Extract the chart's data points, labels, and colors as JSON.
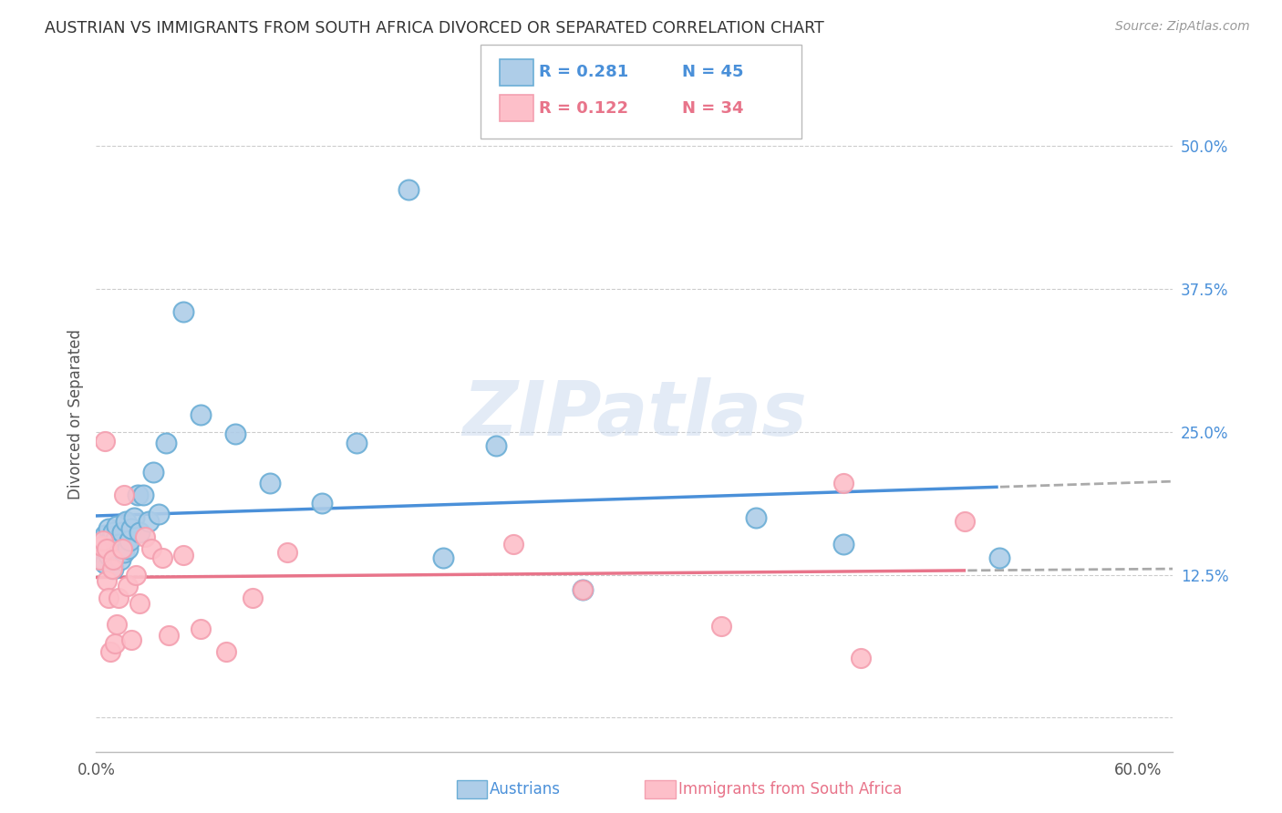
{
  "title": "AUSTRIAN VS IMMIGRANTS FROM SOUTH AFRICA DIVORCED OR SEPARATED CORRELATION CHART",
  "source": "Source: ZipAtlas.com",
  "ylabel": "Divorced or Separated",
  "xlim": [
    0.0,
    0.62
  ],
  "ylim": [
    -0.03,
    0.56
  ],
  "xticks": [
    0.0,
    0.6
  ],
  "xticklabels": [
    "0.0%",
    "60.0%"
  ],
  "yticks": [
    0.0,
    0.125,
    0.25,
    0.375,
    0.5
  ],
  "yticklabels": [
    "",
    "12.5%",
    "25.0%",
    "37.5%",
    "50.0%"
  ],
  "watermark": "ZIPatlas",
  "legend_r1": "R = 0.281",
  "legend_n1": "N = 45",
  "legend_r2": "R = 0.122",
  "legend_n2": "N = 34",
  "blue_scatter_color": "#aecde8",
  "blue_edge_color": "#6baed6",
  "pink_scatter_color": "#fdbfc9",
  "pink_edge_color": "#f4a0b0",
  "blue_line_color": "#4a90d9",
  "pink_line_color": "#e8748a",
  "ytick_color": "#4a90d9",
  "background": "#ffffff",
  "grid_color": "#cccccc",
  "austrians_x": [
    0.002,
    0.003,
    0.003,
    0.004,
    0.005,
    0.005,
    0.006,
    0.007,
    0.007,
    0.008,
    0.009,
    0.01,
    0.01,
    0.011,
    0.012,
    0.012,
    0.013,
    0.014,
    0.015,
    0.016,
    0.017,
    0.018,
    0.019,
    0.02,
    0.022,
    0.024,
    0.025,
    0.027,
    0.03,
    0.033,
    0.036,
    0.04,
    0.05,
    0.06,
    0.08,
    0.1,
    0.13,
    0.15,
    0.18,
    0.2,
    0.23,
    0.28,
    0.38,
    0.43,
    0.52
  ],
  "austrians_y": [
    0.14,
    0.145,
    0.155,
    0.15,
    0.135,
    0.16,
    0.148,
    0.142,
    0.165,
    0.152,
    0.158,
    0.13,
    0.162,
    0.155,
    0.148,
    0.168,
    0.152,
    0.138,
    0.162,
    0.145,
    0.172,
    0.148,
    0.155,
    0.165,
    0.175,
    0.195,
    0.162,
    0.195,
    0.172,
    0.215,
    0.178,
    0.24,
    0.355,
    0.265,
    0.248,
    0.205,
    0.188,
    0.24,
    0.462,
    0.14,
    0.238,
    0.112,
    0.175,
    0.152,
    0.14
  ],
  "sa_x": [
    0.002,
    0.003,
    0.004,
    0.005,
    0.006,
    0.006,
    0.007,
    0.008,
    0.009,
    0.01,
    0.011,
    0.012,
    0.013,
    0.015,
    0.016,
    0.018,
    0.02,
    0.023,
    0.025,
    0.028,
    0.032,
    0.038,
    0.042,
    0.05,
    0.06,
    0.075,
    0.09,
    0.11,
    0.24,
    0.28,
    0.36,
    0.43,
    0.44,
    0.5
  ],
  "sa_y": [
    0.138,
    0.15,
    0.155,
    0.242,
    0.12,
    0.148,
    0.105,
    0.058,
    0.13,
    0.138,
    0.065,
    0.082,
    0.105,
    0.148,
    0.195,
    0.115,
    0.068,
    0.125,
    0.1,
    0.158,
    0.148,
    0.14,
    0.072,
    0.142,
    0.078,
    0.058,
    0.105,
    0.145,
    0.152,
    0.112,
    0.08,
    0.205,
    0.052,
    0.172
  ]
}
